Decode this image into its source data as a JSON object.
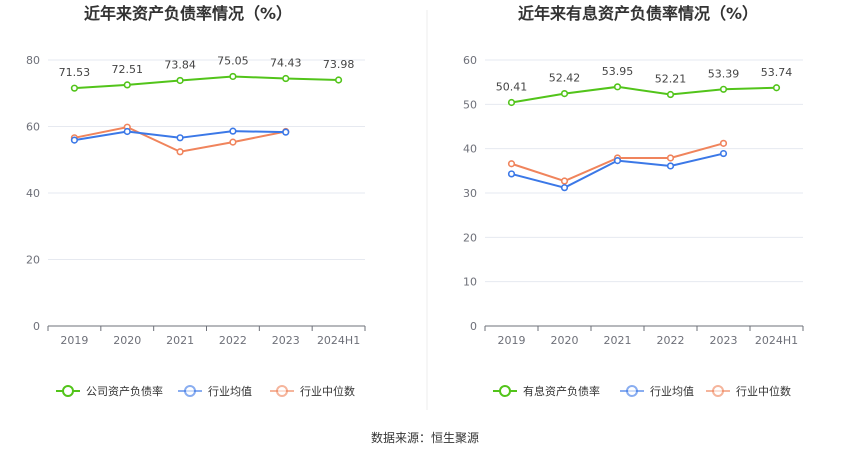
{
  "chart_data": [
    {
      "type": "line",
      "title": "近年来资产负债率情况（%）",
      "categories": [
        "2019",
        "2020",
        "2021",
        "2022",
        "2023",
        "2024H1"
      ],
      "ylim": [
        0,
        80
      ],
      "yticks": [
        0,
        20,
        40,
        60,
        80
      ],
      "grid": true,
      "legend_position": "bottom",
      "series": [
        {
          "name": "公司资产负债率",
          "color": "#52c41a",
          "values": [
            71.53,
            72.51,
            73.84,
            75.05,
            74.43,
            73.98
          ],
          "labels": [
            "71.53",
            "72.51",
            "73.84",
            "75.05",
            "74.43",
            "73.98"
          ]
        },
        {
          "name": "行业均值",
          "color": "#3b78e7",
          "values": [
            55.9,
            58.5,
            56.6,
            58.6,
            58.3,
            null
          ]
        },
        {
          "name": "行业中位数",
          "color": "#f0845c",
          "values": [
            56.6,
            59.8,
            52.4,
            55.3,
            58.5,
            null
          ]
        }
      ]
    },
    {
      "type": "line",
      "title": "近年来有息资产负债率情况（%）",
      "categories": [
        "2019",
        "2020",
        "2021",
        "2022",
        "2023",
        "2024H1"
      ],
      "ylim": [
        0,
        60
      ],
      "yticks": [
        0,
        10,
        20,
        30,
        40,
        50,
        60
      ],
      "grid": true,
      "legend_position": "bottom",
      "series": [
        {
          "name": "有息资产负债率",
          "color": "#52c41a",
          "values": [
            50.41,
            52.42,
            53.95,
            52.21,
            53.39,
            53.74
          ],
          "labels": [
            "50.41",
            "52.42",
            "53.95",
            "52.21",
            "53.39",
            "53.74"
          ]
        },
        {
          "name": "行业均值",
          "color": "#3b78e7",
          "values": [
            34.3,
            31.2,
            37.3,
            36.1,
            38.9,
            null
          ]
        },
        {
          "name": "行业中位数",
          "color": "#f0845c",
          "values": [
            36.6,
            32.7,
            37.9,
            37.9,
            41.2,
            null
          ]
        }
      ]
    }
  ],
  "source_text": "数据来源：恒生聚源"
}
